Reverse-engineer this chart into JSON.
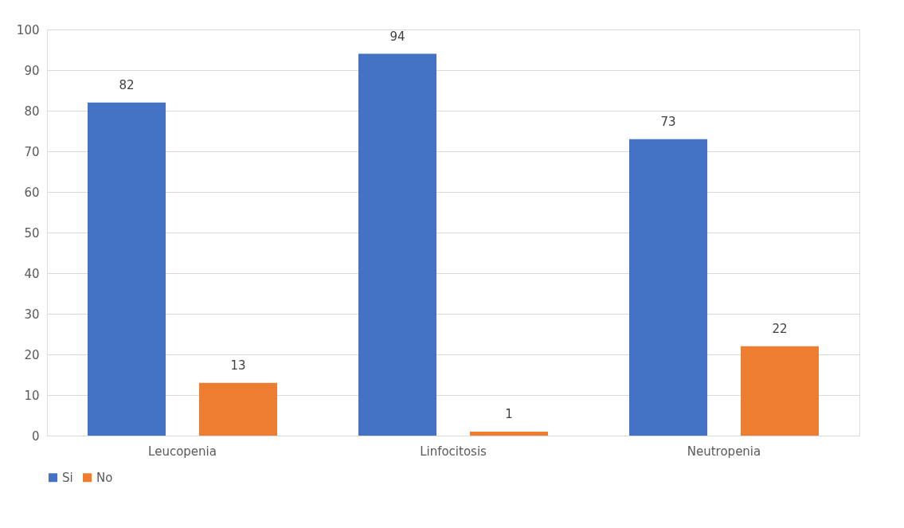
{
  "chart_data": {
    "type": "bar",
    "categories": [
      "Leucopenia",
      "Linfocitosis",
      "Neutropenia"
    ],
    "series": [
      {
        "name": "Si",
        "color": "#4472c4",
        "values": [
          82,
          94,
          73
        ]
      },
      {
        "name": "No",
        "color": "#ed7d31",
        "values": [
          13,
          1,
          22
        ]
      }
    ],
    "ylim": [
      0,
      100
    ],
    "yticks": [
      0,
      10,
      20,
      30,
      40,
      50,
      60,
      70,
      80,
      90,
      100
    ],
    "grid": "y",
    "legend": "bottom",
    "data_labels": true
  }
}
